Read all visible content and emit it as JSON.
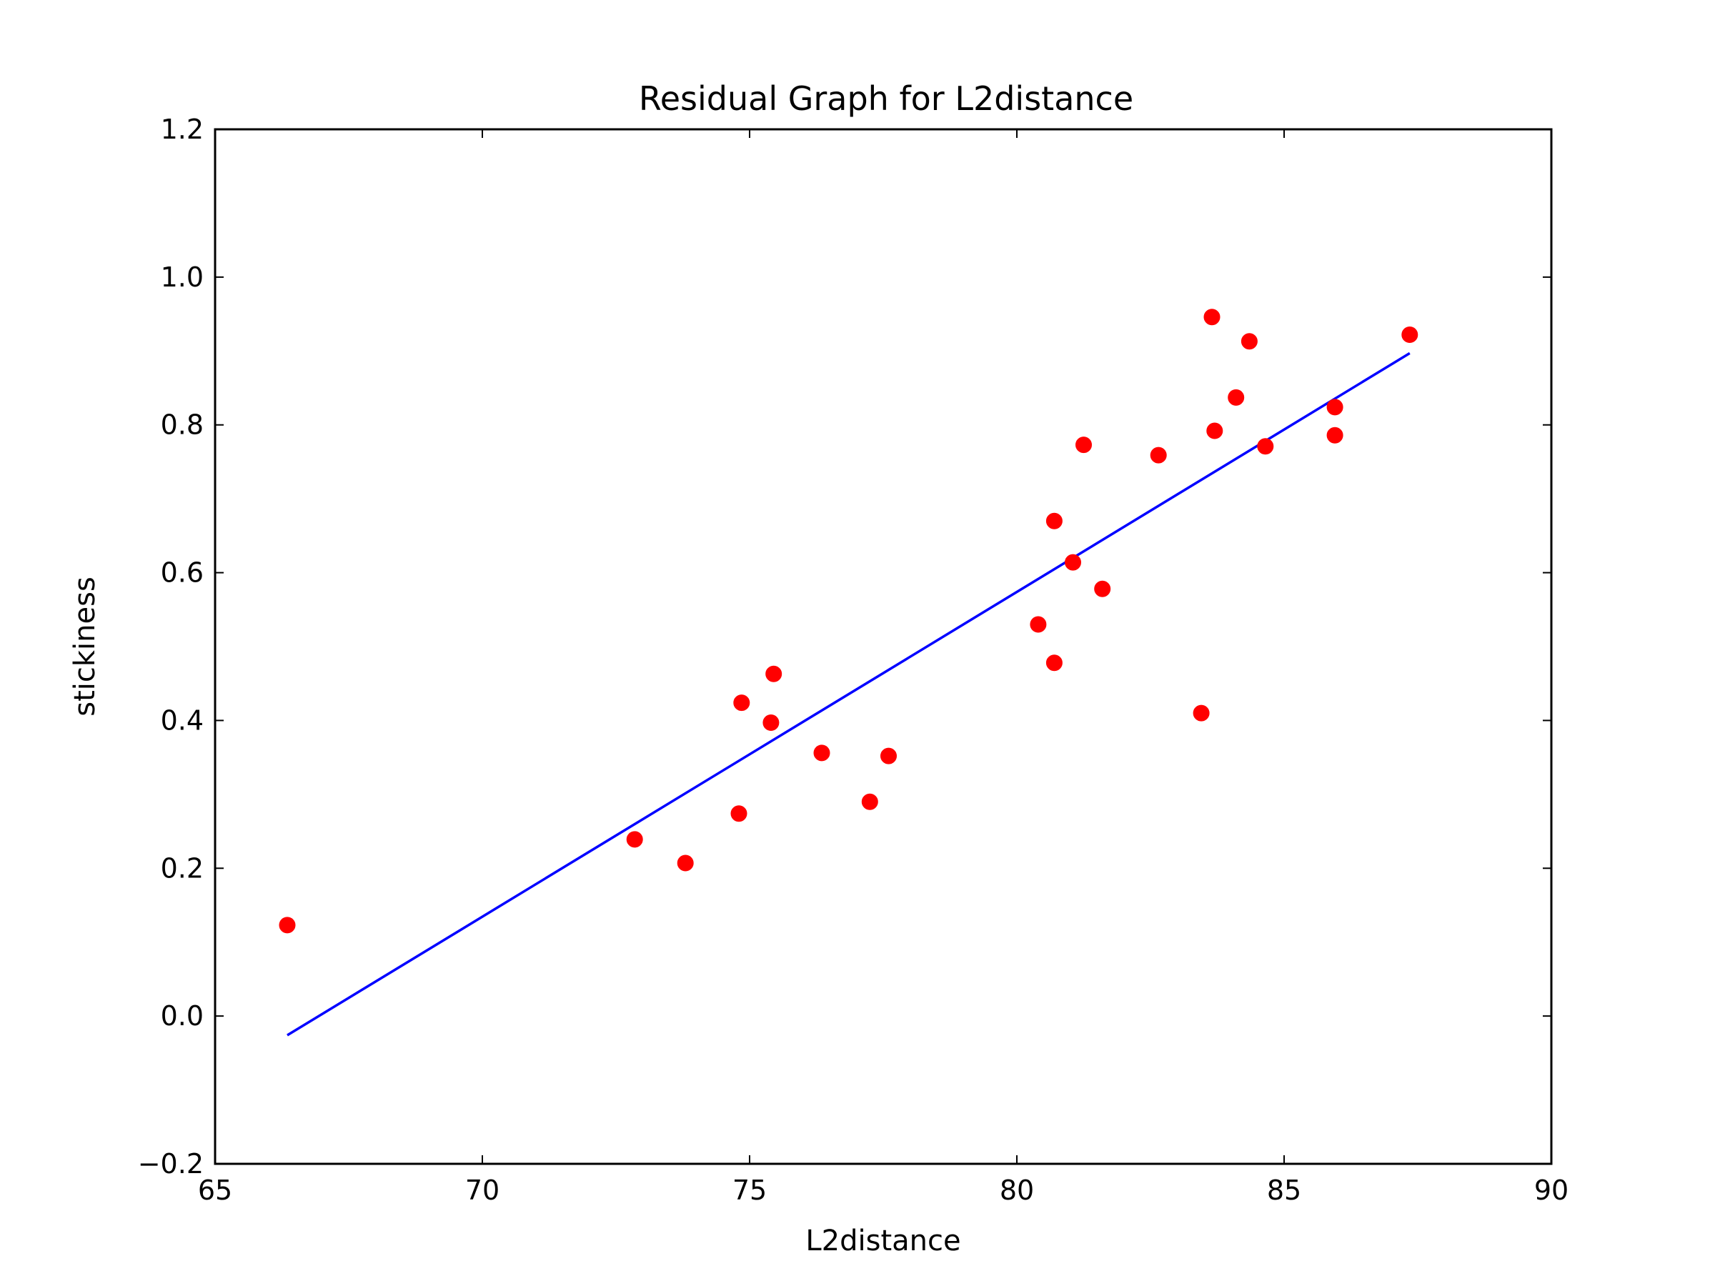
{
  "chart_data": {
    "type": "scatter",
    "title": "Residual Graph for L2distance",
    "xlabel": "L2distance",
    "ylabel": "stickiness",
    "xlim": [
      65,
      90
    ],
    "ylim": [
      -0.2,
      1.2
    ],
    "x_ticks": [
      65,
      70,
      75,
      80,
      85,
      90
    ],
    "x_tick_labels": [
      "65",
      "70",
      "75",
      "80",
      "85",
      "90"
    ],
    "y_ticks": [
      -0.2,
      0.0,
      0.2,
      0.4,
      0.6,
      0.8,
      1.0,
      1.2
    ],
    "y_tick_labels": [
      "−0.2",
      "0.0",
      "0.2",
      "0.4",
      "0.6",
      "0.8",
      "1.0",
      "1.2"
    ],
    "grid": false,
    "series": [
      {
        "kind": "scatter",
        "color": "#ff0000",
        "points": [
          [
            66.35,
            0.123
          ],
          [
            72.85,
            0.239
          ],
          [
            73.8,
            0.207
          ],
          [
            74.8,
            0.274
          ],
          [
            74.85,
            0.424
          ],
          [
            75.4,
            0.397
          ],
          [
            75.45,
            0.463
          ],
          [
            76.35,
            0.356
          ],
          [
            77.25,
            0.29
          ],
          [
            77.6,
            0.352
          ],
          [
            80.4,
            0.53
          ],
          [
            80.7,
            0.67
          ],
          [
            80.7,
            0.478
          ],
          [
            81.05,
            0.614
          ],
          [
            81.25,
            0.773
          ],
          [
            81.6,
            0.578
          ],
          [
            82.65,
            0.759
          ],
          [
            83.45,
            0.41
          ],
          [
            83.65,
            0.946
          ],
          [
            83.7,
            0.792
          ],
          [
            84.1,
            0.837
          ],
          [
            84.35,
            0.913
          ],
          [
            84.65,
            0.771
          ],
          [
            85.95,
            0.824
          ],
          [
            85.95,
            0.786
          ],
          [
            87.35,
            0.922
          ]
        ]
      },
      {
        "kind": "line",
        "color": "#0000ff",
        "points": [
          [
            66.35,
            -0.026
          ],
          [
            87.35,
            0.897
          ]
        ]
      }
    ]
  }
}
